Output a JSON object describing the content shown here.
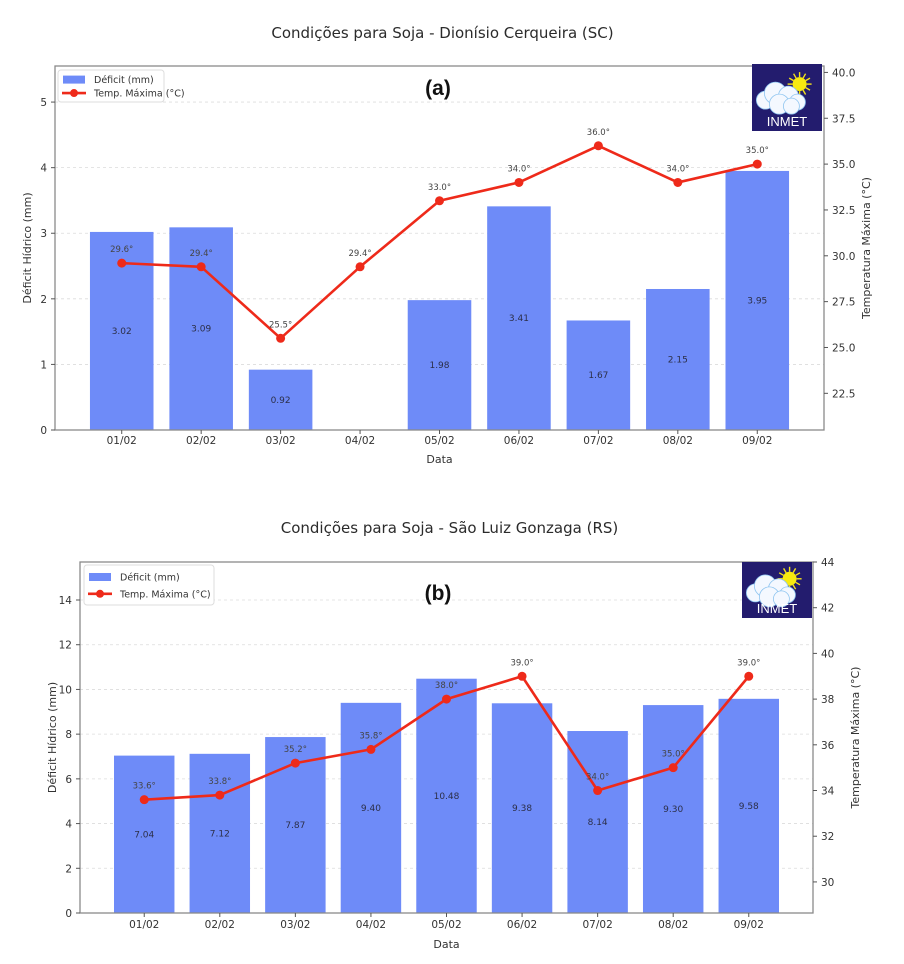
{
  "chart_data": [
    {
      "type": "bar",
      "combo": "bar+line (dual y-axis)",
      "title": "Condições para Soja - Dionísio Cerqueira (SC)",
      "panel_label": "(a)",
      "xlabel": "Data",
      "ylabel": "Déficit Hídrico (mm)",
      "ylabel_right": "Temperatura Máxima (°C)",
      "categories": [
        "01/02",
        "02/02",
        "03/02",
        "04/02",
        "05/02",
        "06/02",
        "07/02",
        "08/02",
        "09/02"
      ],
      "series": [
        {
          "name": "Déficit (mm)",
          "type": "bar",
          "axis": "left",
          "color": "#6e8bf8",
          "values": [
            3.02,
            3.09,
            0.92,
            0,
            1.98,
            3.41,
            1.67,
            2.15,
            3.95
          ],
          "labels": [
            "3.02",
            "3.09",
            "0.92",
            "",
            "1.98",
            "3.41",
            "1.67",
            "2.15",
            "3.95"
          ]
        },
        {
          "name": "Temp. Máxima (°C)",
          "type": "line",
          "axis": "right",
          "color": "#ee2a1a",
          "values": [
            29.6,
            29.4,
            25.5,
            29.4,
            33.0,
            34.0,
            36.0,
            34.0,
            35.0
          ],
          "labels": [
            "29.6°",
            "29.4°",
            "25.5°",
            "29.4°",
            "33.0°",
            "34.0°",
            "36.0°",
            "34.0°",
            "35.0°"
          ]
        }
      ],
      "ylim": [
        0,
        5.55
      ],
      "yticks": [
        0,
        1,
        2,
        3,
        4,
        5
      ],
      "ytick_labels": [
        "0",
        "1",
        "2",
        "3",
        "4",
        "5"
      ],
      "ylim_right": [
        20.5,
        40.35
      ],
      "yticks_right": [
        22.5,
        25.0,
        27.5,
        30.0,
        32.5,
        35.0,
        37.5,
        40.0
      ],
      "ytick_labels_right": [
        "22.5",
        "25.0",
        "27.5",
        "30.0",
        "32.5",
        "35.0",
        "37.5",
        "40.0"
      ],
      "grid": "horizontal dashed",
      "legend": "top-left",
      "logo": "INMET"
    },
    {
      "type": "bar",
      "combo": "bar+line (dual y-axis)",
      "title": "Condições para Soja - São Luiz Gonzaga (RS)",
      "panel_label": "(b)",
      "xlabel": "Data",
      "ylabel": "Déficit Hídrico (mm)",
      "ylabel_right": "Temperatura Máxima (°C)",
      "categories": [
        "01/02",
        "02/02",
        "03/02",
        "04/02",
        "05/02",
        "06/02",
        "07/02",
        "08/02",
        "09/02"
      ],
      "series": [
        {
          "name": "Déficit (mm)",
          "type": "bar",
          "axis": "left",
          "color": "#6e8bf8",
          "values": [
            7.04,
            7.12,
            7.87,
            9.4,
            10.48,
            9.38,
            8.14,
            9.3,
            9.58
          ],
          "labels": [
            "7.04",
            "7.12",
            "7.87",
            "9.40",
            "10.48",
            "9.38",
            "8.14",
            "9.30",
            "9.58"
          ]
        },
        {
          "name": "Temp. Máxima (°C)",
          "type": "line",
          "axis": "right",
          "color": "#ee2a1a",
          "values": [
            33.6,
            33.8,
            35.2,
            35.8,
            38.0,
            39.0,
            34.0,
            35.0,
            39.0
          ],
          "labels": [
            "33.6°",
            "33.8°",
            "35.2°",
            "35.8°",
            "38.0°",
            "39.0°",
            "34.0°",
            "35.0°",
            "39.0°"
          ]
        }
      ],
      "ylim": [
        0,
        15.7
      ],
      "yticks": [
        0,
        2,
        4,
        6,
        8,
        10,
        12,
        14
      ],
      "ytick_labels": [
        "0",
        "2",
        "4",
        "6",
        "8",
        "10",
        "12",
        "14"
      ],
      "ylim_right": [
        28.64,
        44.0
      ],
      "yticks_right": [
        30,
        32,
        34,
        36,
        38,
        40,
        42,
        44
      ],
      "ytick_labels_right": [
        "30",
        "32",
        "34",
        "36",
        "38",
        "40",
        "42",
        "44"
      ],
      "grid": "horizontal dashed",
      "legend": "top-left",
      "logo": "INMET"
    }
  ]
}
